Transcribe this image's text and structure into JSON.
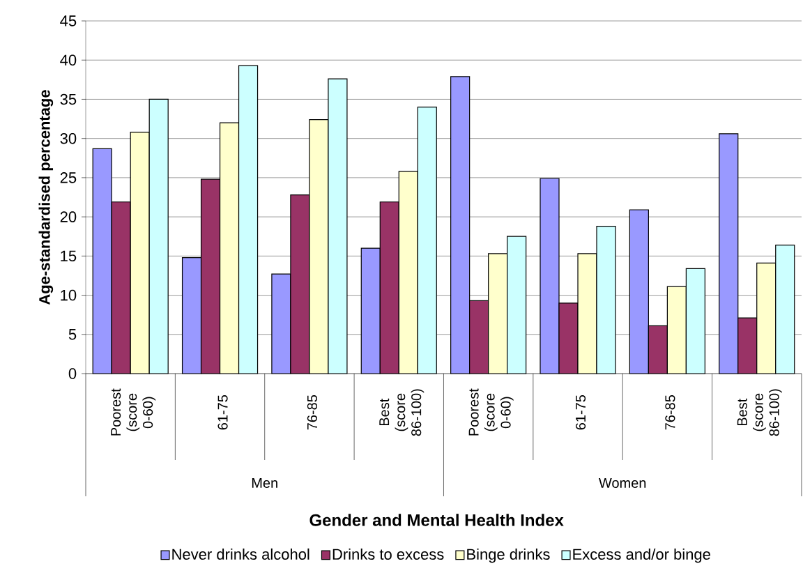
{
  "chart_data": {
    "type": "bar",
    "xlabel": "Gender and Mental Health Index",
    "ylabel": "Age-standardised percentage",
    "categories": [
      "Poorest (score 0-60)",
      "61-75",
      "76-85",
      "Best (score 86-100)",
      "Poorest (score 0-60)",
      "61-75",
      "76-85",
      "Best (score 86-100)"
    ],
    "annotations": [
      "Men",
      "Women"
    ],
    "series": [
      {
        "name": "Never drinks alcohol",
        "color": "#9999ff",
        "values": [
          28.7,
          14.8,
          12.7,
          16.0,
          37.9,
          24.9,
          20.9,
          30.6
        ]
      },
      {
        "name": "Drinks to excess",
        "color": "#993366",
        "values": [
          21.9,
          24.8,
          22.8,
          21.9,
          9.3,
          9.0,
          6.1,
          7.1
        ]
      },
      {
        "name": "Binge drinks",
        "color": "#ffffcc",
        "values": [
          30.8,
          32.0,
          32.4,
          25.8,
          15.3,
          15.3,
          11.1,
          14.1
        ]
      },
      {
        "name": "Excess and/or binge",
        "color": "#ccffff",
        "values": [
          35.0,
          39.3,
          37.6,
          34.0,
          17.5,
          18.8,
          13.4,
          16.4
        ]
      }
    ],
    "ylim": [
      0,
      45
    ],
    "yticks": [
      0,
      5,
      10,
      15,
      20,
      25,
      30,
      35,
      40,
      45
    ],
    "grid": "y",
    "legend": "bottom"
  }
}
